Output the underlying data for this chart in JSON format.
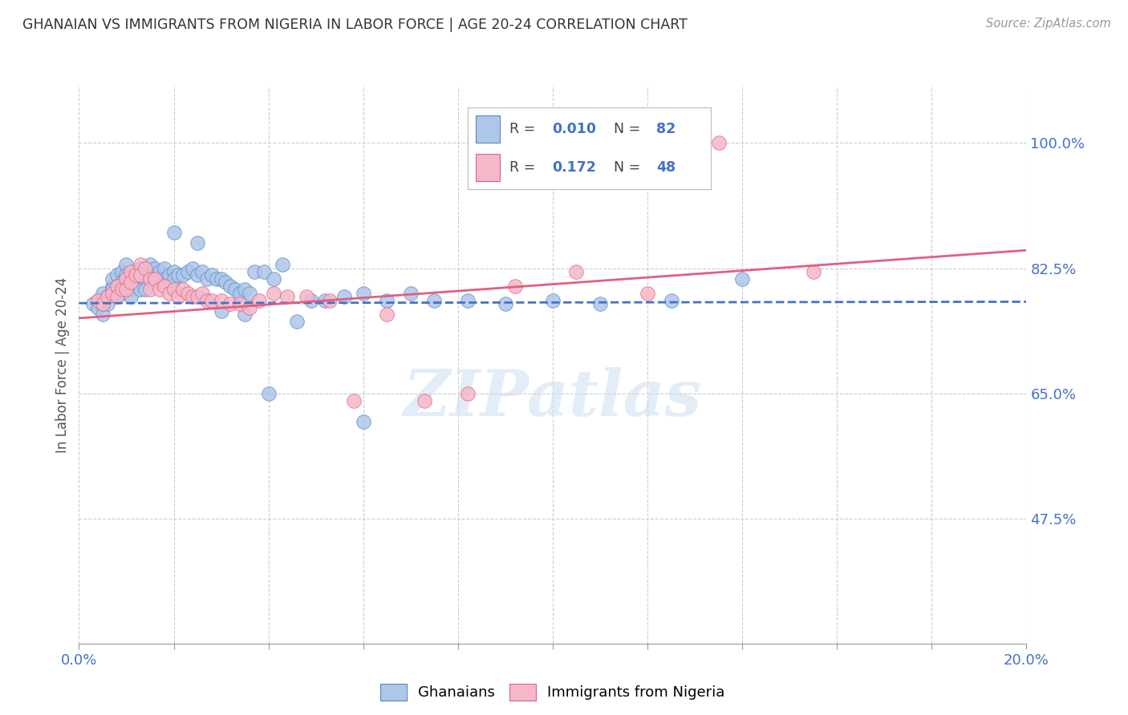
{
  "title": "GHANAIAN VS IMMIGRANTS FROM NIGERIA IN LABOR FORCE | AGE 20-24 CORRELATION CHART",
  "source": "Source: ZipAtlas.com",
  "ylabel": "In Labor Force | Age 20-24",
  "xlim": [
    0.0,
    0.2
  ],
  "ylim": [
    0.3,
    1.08
  ],
  "xtick_positions": [
    0.0,
    0.02,
    0.04,
    0.06,
    0.08,
    0.1,
    0.12,
    0.14,
    0.16,
    0.18,
    0.2
  ],
  "ytick_positions": [
    0.475,
    0.65,
    0.825,
    1.0
  ],
  "ytick_labels": [
    "47.5%",
    "65.0%",
    "82.5%",
    "100.0%"
  ],
  "R_blue": 0.01,
  "N_blue": 82,
  "R_pink": 0.172,
  "N_pink": 48,
  "blue_fill": "#aec6e8",
  "pink_fill": "#f5b8c8",
  "blue_edge": "#5588cc",
  "pink_edge": "#e06080",
  "blue_line_color": "#4472c4",
  "pink_line_color": "#e06080",
  "tick_label_color": "#4472c4",
  "watermark": "ZIPatlas",
  "blue_scatter_x": [
    0.003,
    0.004,
    0.004,
    0.005,
    0.005,
    0.005,
    0.006,
    0.006,
    0.007,
    0.007,
    0.007,
    0.008,
    0.008,
    0.008,
    0.009,
    0.009,
    0.009,
    0.01,
    0.01,
    0.01,
    0.011,
    0.011,
    0.011,
    0.012,
    0.012,
    0.013,
    0.013,
    0.013,
    0.014,
    0.014,
    0.015,
    0.015,
    0.016,
    0.016,
    0.017,
    0.017,
    0.018,
    0.018,
    0.019,
    0.019,
    0.02,
    0.02,
    0.021,
    0.022,
    0.023,
    0.024,
    0.025,
    0.026,
    0.027,
    0.028,
    0.029,
    0.03,
    0.031,
    0.032,
    0.033,
    0.034,
    0.035,
    0.036,
    0.037,
    0.039,
    0.041,
    0.043,
    0.046,
    0.049,
    0.052,
    0.056,
    0.06,
    0.065,
    0.07,
    0.075,
    0.082,
    0.09,
    0.1,
    0.11,
    0.125,
    0.14,
    0.02,
    0.025,
    0.03,
    0.035,
    0.04,
    0.06
  ],
  "blue_scatter_y": [
    0.775,
    0.78,
    0.77,
    0.76,
    0.775,
    0.79,
    0.775,
    0.785,
    0.8,
    0.81,
    0.795,
    0.815,
    0.8,
    0.79,
    0.82,
    0.805,
    0.79,
    0.83,
    0.815,
    0.8,
    0.81,
    0.795,
    0.785,
    0.82,
    0.805,
    0.825,
    0.81,
    0.795,
    0.81,
    0.795,
    0.83,
    0.815,
    0.825,
    0.81,
    0.82,
    0.805,
    0.825,
    0.81,
    0.815,
    0.8,
    0.82,
    0.81,
    0.815,
    0.815,
    0.82,
    0.825,
    0.815,
    0.82,
    0.81,
    0.815,
    0.81,
    0.81,
    0.805,
    0.8,
    0.795,
    0.79,
    0.795,
    0.79,
    0.82,
    0.82,
    0.81,
    0.83,
    0.75,
    0.78,
    0.78,
    0.785,
    0.79,
    0.78,
    0.79,
    0.78,
    0.78,
    0.775,
    0.78,
    0.775,
    0.78,
    0.81,
    0.875,
    0.86,
    0.765,
    0.76,
    0.65,
    0.61
  ],
  "pink_scatter_x": [
    0.004,
    0.005,
    0.006,
    0.007,
    0.008,
    0.008,
    0.009,
    0.01,
    0.01,
    0.011,
    0.011,
    0.012,
    0.013,
    0.013,
    0.014,
    0.015,
    0.015,
    0.016,
    0.017,
    0.018,
    0.019,
    0.02,
    0.021,
    0.022,
    0.023,
    0.024,
    0.025,
    0.026,
    0.027,
    0.028,
    0.03,
    0.032,
    0.034,
    0.036,
    0.038,
    0.041,
    0.044,
    0.048,
    0.053,
    0.058,
    0.065,
    0.073,
    0.082,
    0.092,
    0.105,
    0.12,
    0.135,
    0.155
  ],
  "pink_scatter_y": [
    0.78,
    0.775,
    0.785,
    0.79,
    0.8,
    0.785,
    0.795,
    0.81,
    0.795,
    0.82,
    0.805,
    0.815,
    0.83,
    0.815,
    0.825,
    0.81,
    0.795,
    0.81,
    0.795,
    0.8,
    0.79,
    0.795,
    0.785,
    0.795,
    0.79,
    0.785,
    0.785,
    0.79,
    0.78,
    0.78,
    0.78,
    0.775,
    0.775,
    0.77,
    0.78,
    0.79,
    0.785,
    0.785,
    0.78,
    0.64,
    0.76,
    0.64,
    0.65,
    0.8,
    0.82,
    0.79,
    1.0,
    0.82
  ],
  "blue_line_x": [
    0.0,
    0.2
  ],
  "blue_line_y": [
    0.776,
    0.778
  ],
  "pink_line_x": [
    0.0,
    0.2
  ],
  "pink_line_y": [
    0.755,
    0.85
  ]
}
